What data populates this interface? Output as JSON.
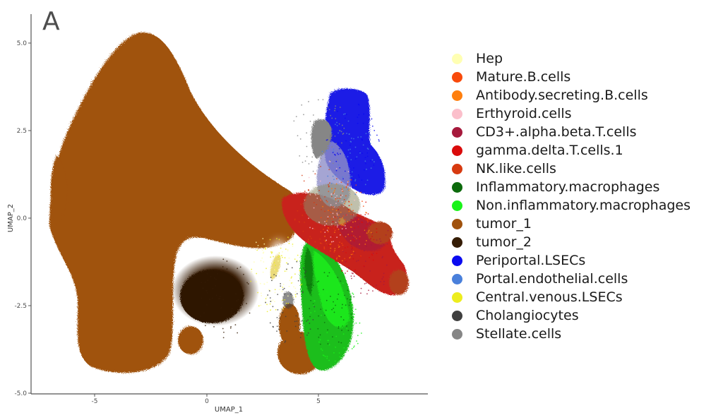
{
  "panel": {
    "label": "A"
  },
  "chart_data": {
    "type": "scatter",
    "title": "",
    "xlabel": "UMAP_1",
    "ylabel": "UMAP_2",
    "xlim": [
      -8.5,
      9.8
    ],
    "ylim": [
      -5.0,
      5.7
    ],
    "x_ticks": [
      "-5",
      "0",
      "5"
    ],
    "y_ticks": [
      "5.0",
      "2.5",
      "0.0",
      "-2.5",
      "-5.0"
    ],
    "grid": false,
    "legend_position": "right",
    "series": [
      {
        "name": "Hep",
        "color": "#FFFFB3",
        "approx_center": [
          3.0,
          -1.5
        ]
      },
      {
        "name": "Mature.B.cells",
        "color": "#F84A0B",
        "approx_center": [
          6.0,
          0.0
        ]
      },
      {
        "name": "Antibody.secreting.B.cells",
        "color": "#FF7F0E",
        "approx_center": [
          6.2,
          -0.1
        ]
      },
      {
        "name": "Erthyroid.cells",
        "color": "#FBBFCB",
        "approx_center": [
          5.5,
          0.5
        ]
      },
      {
        "name": "CD3+.alpha.beta.T.cells",
        "color": "#A6193C",
        "approx_center": [
          7.2,
          -1.0
        ]
      },
      {
        "name": "gamma.delta.T.cells.1",
        "color": "#DA0B0B",
        "approx_center": [
          6.5,
          -0.5
        ]
      },
      {
        "name": "NK.like.cells",
        "color": "#D73A10",
        "approx_center": [
          5.0,
          0.3
        ]
      },
      {
        "name": "Inflammatory.macrophages",
        "color": "#0C6A0C",
        "approx_center": [
          5.5,
          -2.5
        ]
      },
      {
        "name": "Non.inflammatory.macrophages",
        "color": "#19F319",
        "approx_center": [
          5.8,
          -3.0
        ]
      },
      {
        "name": "tumor_1",
        "color": "#A0520D",
        "approx_center": [
          -3.0,
          1.0
        ]
      },
      {
        "name": "tumor_2",
        "color": "#351C05",
        "approx_center": [
          0.8,
          -2.3
        ]
      },
      {
        "name": "Periportal.LSECs",
        "color": "#0B0BF0",
        "approx_center": [
          6.5,
          2.2
        ]
      },
      {
        "name": "Portal.endothelial.cells",
        "color": "#4A80DB",
        "approx_center": [
          6.3,
          1.8
        ]
      },
      {
        "name": "Central.venous.LSECs",
        "color": "#EDED1E",
        "approx_center": [
          3.1,
          -1.6
        ]
      },
      {
        "name": "Cholangiocytes",
        "color": "#3F3F3F",
        "approx_center": [
          3.8,
          -2.4
        ]
      },
      {
        "name": "Stellate.cells",
        "color": "#868686",
        "approx_center": [
          5.0,
          2.5
        ]
      }
    ]
  },
  "legend": {
    "items": [
      {
        "label": "Hep",
        "color": "#FFFFB3"
      },
      {
        "label": "Mature.B.cells",
        "color": "#F84A0B"
      },
      {
        "label": "Antibody.secreting.B.cells",
        "color": "#FF7F0E"
      },
      {
        "label": "Erthyroid.cells",
        "color": "#FBBFCB"
      },
      {
        "label": "CD3+.alpha.beta.T.cells",
        "color": "#A6193C"
      },
      {
        "label": "gamma.delta.T.cells.1",
        "color": "#DA0B0B"
      },
      {
        "label": "NK.like.cells",
        "color": "#D73A10"
      },
      {
        "label": "Inflammatory.macrophages",
        "color": "#0C6A0C"
      },
      {
        "label": "Non.inflammatory.macrophages",
        "color": "#19F319"
      },
      {
        "label": "tumor_1",
        "color": "#A0520D"
      },
      {
        "label": "tumor_2",
        "color": "#351C05"
      },
      {
        "label": "Periportal.LSECs",
        "color": "#0B0BF0"
      },
      {
        "label": "Portal.endothelial.cells",
        "color": "#4A80DB"
      },
      {
        "label": "Central.venous.LSECs",
        "color": "#EDED1E"
      },
      {
        "label": "Cholangiocytes",
        "color": "#3F3F3F"
      },
      {
        "label": "Stellate.cells",
        "color": "#868686"
      }
    ]
  }
}
